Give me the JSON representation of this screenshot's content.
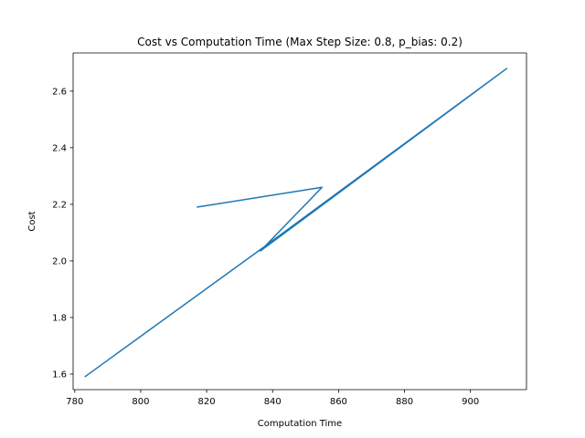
{
  "chart_data": {
    "type": "line",
    "title": "Cost vs Computation Time (Max Step Size: 0.8, p_bias: 0.2)",
    "xlabel": "Computation Time",
    "ylabel": "Cost",
    "xlim": [
      779.5,
      917.0
    ],
    "ylim": [
      1.545,
      2.735
    ],
    "xticks": [
      780,
      800,
      820,
      840,
      860,
      880,
      900
    ],
    "yticks": [
      1.6,
      1.8,
      2.0,
      2.2,
      2.4,
      2.6
    ],
    "ytick_labels": [
      "1.6",
      "1.8",
      "2.0",
      "2.2",
      "2.4",
      "2.6"
    ],
    "grid": false,
    "colors": {
      "series": "#1f77b4"
    },
    "series": [
      {
        "x": [
          817,
          855,
          836.3,
          911,
          836.3,
          783
        ],
        "y": [
          2.19,
          2.26,
          2.035,
          2.68,
          2.04,
          1.59
        ]
      }
    ]
  }
}
